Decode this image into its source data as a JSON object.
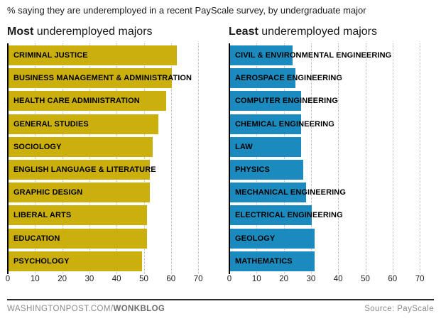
{
  "title": "% saying they are underemployed in a recent PayScale survey, by undergraduate major",
  "colors": {
    "most_bar": "#cbb00d",
    "least_bar": "#1b8bbf",
    "gridline": "#b9b9b9",
    "axis_line": "#000000",
    "text": "#1a1a1a",
    "footer_text": "#8a8a8a",
    "footer_rule": "#2b2b2b"
  },
  "chart_data": [
    {
      "type": "bar",
      "orientation": "horizontal",
      "title_bold": "Most",
      "title_rest": " underemployed majors",
      "categories": [
        "CRIMINAL JUSTICE",
        "BUSINESS MANAGEMENT & ADMINISTRATION",
        "HEALTH CARE ADMINISTRATION",
        "GENERAL STUDIES",
        "SOCIOLOGY",
        "ENGLISH LANGUAGE & LITERATURE",
        "GRAPHIC DESIGN",
        "LIBERAL ARTS",
        "EDUCATION",
        "PSYCHOLOGY"
      ],
      "values": [
        62,
        60,
        58,
        55,
        53,
        52,
        52,
        51,
        51,
        49
      ],
      "bar_color": "#cbb00d",
      "xlabel": "",
      "ylabel": "",
      "xlim": [
        0,
        70
      ],
      "ticks": [
        0,
        10,
        20,
        30,
        40,
        50,
        60,
        70
      ],
      "grid": "dotted-vertical",
      "legend": "none"
    },
    {
      "type": "bar",
      "orientation": "horizontal",
      "title_bold": "Least",
      "title_rest": " underemployed majors",
      "categories": [
        "CIVIL & ENVIRONMENTAL ENGINEERING",
        "AEROSPACE ENGINEERING",
        "COMPUTER ENGINEERING",
        "CHEMICAL ENGINEERING",
        "LAW",
        "PHYSICS",
        "MECHANICAL ENGINEERING",
        "ELECTRICAL ENGINEERING",
        "GEOLOGY",
        "MATHEMATICS"
      ],
      "values": [
        23,
        24,
        26,
        26,
        26,
        27,
        28,
        30,
        31,
        31
      ],
      "bar_color": "#1b8bbf",
      "xlabel": "",
      "ylabel": "",
      "xlim": [
        0,
        70
      ],
      "ticks": [
        0,
        10,
        20,
        30,
        40,
        50,
        60,
        70
      ],
      "grid": "dotted-vertical",
      "legend": "none"
    }
  ],
  "footer": {
    "left_regular": "WASHINGTONPOST.COM/",
    "left_bold": "WONKBLOG",
    "source": "Source: PayScale"
  }
}
